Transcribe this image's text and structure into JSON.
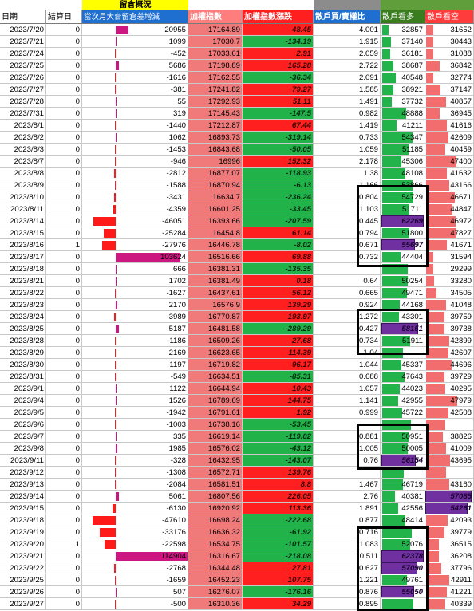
{
  "group_headers": {
    "oi_overview": "留倉概況"
  },
  "headers": {
    "date": "日期",
    "settle_day": "結算日",
    "oi_change": "當次月大台留倉差增減",
    "index": "加權指數",
    "index_change": "加權指數漲跌",
    "retail_ls_ratio": "散戶買/賣權比",
    "retail_long": "散戶看多",
    "retail_short": "散戶看空"
  },
  "colors": {
    "up": "#ff1f1f",
    "down": "#21b24a",
    "highlight": "#7030a0",
    "header_yellow": "#ffff00",
    "header_blue": "#1f6fd1"
  },
  "rows": [
    {
      "date": "2023/7/20",
      "settle": "0",
      "oi": "20955",
      "oiv": 20955,
      "idx": "17164.89",
      "chg": "48.45",
      "chgv": 48.45,
      "ratio": "4.001",
      "long": "32857",
      "longv": 32857,
      "short": "31652",
      "shortv": 31652
    },
    {
      "date": "2023/7/21",
      "settle": "0",
      "oi": "1099",
      "oiv": 1099,
      "idx": "17030.7",
      "chg": "-134.19",
      "chgv": -134.19,
      "ratio": "1.915",
      "long": "37140",
      "longv": 37140,
      "short": "30443",
      "shortv": 30443
    },
    {
      "date": "2023/7/24",
      "settle": "0",
      "oi": "-452",
      "oiv": -452,
      "idx": "17033.61",
      "chg": "2.91",
      "chgv": 2.91,
      "ratio": "2.059",
      "long": "36181",
      "longv": 36181,
      "short": "31088",
      "shortv": 31088
    },
    {
      "date": "2023/7/25",
      "settle": "0",
      "oi": "5686",
      "oiv": 5686,
      "idx": "17198.89",
      "chg": "165.28",
      "chgv": 165.28,
      "ratio": "2.722",
      "long": "38687",
      "longv": 38687,
      "short": "36842",
      "shortv": 36842
    },
    {
      "date": "2023/7/26",
      "settle": "0",
      "oi": "-1616",
      "oiv": -1616,
      "idx": "17162.55",
      "chg": "-36.34",
      "chgv": -36.34,
      "ratio": "2.091",
      "long": "40548",
      "longv": 40548,
      "short": "32774",
      "shortv": 32774
    },
    {
      "date": "2023/7/27",
      "settle": "0",
      "oi": "-381",
      "oiv": -381,
      "idx": "17241.82",
      "chg": "79.27",
      "chgv": 79.27,
      "ratio": "1.585",
      "long": "38921",
      "longv": 38921,
      "short": "37147",
      "shortv": 37147
    },
    {
      "date": "2023/7/28",
      "settle": "0",
      "oi": "55",
      "oiv": 55,
      "idx": "17292.93",
      "chg": "51.11",
      "chgv": 51.11,
      "ratio": "1.491",
      "long": "37732",
      "longv": 37732,
      "short": "40857",
      "shortv": 40857
    },
    {
      "date": "2023/7/31",
      "settle": "0",
      "oi": "319",
      "oiv": 319,
      "idx": "17145.43",
      "chg": "-147.5",
      "chgv": -147.5,
      "ratio": "0.982",
      "long": "48888",
      "longv": 48888,
      "short": "36945",
      "shortv": 36945
    },
    {
      "date": "2023/8/1",
      "settle": "0",
      "oi": "-1440",
      "oiv": -1440,
      "idx": "17212.87",
      "chg": "67.44",
      "chgv": 67.44,
      "ratio": "1.419",
      "long": "41211",
      "longv": 41211,
      "short": "41616",
      "shortv": 41616
    },
    {
      "date": "2023/8/2",
      "settle": "0",
      "oi": "1062",
      "oiv": 1062,
      "idx": "16893.73",
      "chg": "-319.14",
      "chgv": -319.14,
      "ratio": "0.733",
      "long": "54347",
      "longv": 54347,
      "short": "42609",
      "shortv": 42609
    },
    {
      "date": "2023/8/3",
      "settle": "0",
      "oi": "-1453",
      "oiv": -1453,
      "idx": "16843.68",
      "chg": "-50.05",
      "chgv": -50.05,
      "ratio": "1.059",
      "long": "51185",
      "longv": 51185,
      "short": "40459",
      "shortv": 40459
    },
    {
      "date": "2023/8/7",
      "settle": "0",
      "oi": "-946",
      "oiv": -946,
      "idx": "16996",
      "chg": "152.32",
      "chgv": 152.32,
      "ratio": "2.178",
      "long": "45306",
      "longv": 45306,
      "short": "47400",
      "shortv": 47400
    },
    {
      "date": "2023/8/8",
      "settle": "0",
      "oi": "-2812",
      "oiv": -2812,
      "idx": "16877.07",
      "chg": "-118.93",
      "chgv": -118.93,
      "ratio": "1.38",
      "long": "48108",
      "longv": 48108,
      "short": "41632",
      "shortv": 41632
    },
    {
      "date": "2023/8/9",
      "settle": "0",
      "oi": "-1588",
      "oiv": -1588,
      "idx": "16870.94",
      "chg": "-6.13",
      "chgv": -6.13,
      "ratio": "1.166",
      "long": "53866",
      "longv": 53866,
      "short": "43166",
      "shortv": 43166
    },
    {
      "date": "2023/8/10",
      "settle": "0",
      "oi": "-3431",
      "oiv": -3431,
      "idx": "16634.7",
      "chg": "-236.24",
      "chgv": -236.24,
      "ratio": "0.804",
      "long": "54729",
      "longv": 54729,
      "short": "46671",
      "shortv": 46671
    },
    {
      "date": "2023/8/11",
      "settle": "0",
      "oi": "-4359",
      "oiv": -4359,
      "idx": "16601.25",
      "chg": "-33.45",
      "chgv": -33.45,
      "ratio": "1.103",
      "long": "51711",
      "longv": 51711,
      "short": "44847",
      "shortv": 44847
    },
    {
      "date": "2023/8/14",
      "settle": "0",
      "oi": "-46051",
      "oiv": -46051,
      "idx": "16393.66",
      "chg": "-207.59",
      "chgv": -207.59,
      "ratio": "0.445",
      "long": "62269",
      "longv": 62269,
      "short": "46972",
      "shortv": 46972,
      "hl_long": true
    },
    {
      "date": "2023/8/15",
      "settle": "0",
      "oi": "-25284",
      "oiv": -25284,
      "idx": "16454.8",
      "chg": "61.14",
      "chgv": 61.14,
      "ratio": "0.794",
      "long": "51800",
      "longv": 51800,
      "short": "47827",
      "shortv": 47827
    },
    {
      "date": "2023/8/16",
      "settle": "1",
      "oi": "-27976",
      "oiv": -27976,
      "idx": "16446.78",
      "chg": "-8.02",
      "chgv": -8.02,
      "ratio": "0.671",
      "long": "55697",
      "longv": 55697,
      "short": "41671",
      "shortv": 41671,
      "hl_long": true
    },
    {
      "date": "2023/8/17",
      "settle": "0",
      "oi": "103624",
      "oiv": 103624,
      "idx": "16516.66",
      "chg": "69.88",
      "chgv": 69.88,
      "ratio": "0.732",
      "long": "44404",
      "longv": 44404,
      "short": "31594",
      "shortv": 31594
    },
    {
      "date": "2023/8/18",
      "settle": "0",
      "oi": "666",
      "oiv": 666,
      "idx": "16381.31",
      "chg": "-135.35",
      "chgv": -135.35,
      "ratio": "",
      "long": "",
      "longv": 50200,
      "short": "29299",
      "shortv": 29299
    },
    {
      "date": "2023/8/21",
      "settle": "0",
      "oi": "1702",
      "oiv": 1702,
      "idx": "16381.49",
      "chg": "0.18",
      "chgv": 0.18,
      "ratio": "0.64",
      "long": "50254",
      "longv": 50254,
      "short": "33280",
      "shortv": 33280
    },
    {
      "date": "2023/8/22",
      "settle": "0",
      "oi": "-1627",
      "oiv": -1627,
      "idx": "16437.61",
      "chg": "56.12",
      "chgv": 56.12,
      "ratio": "0.665",
      "long": "49471",
      "longv": 49471,
      "short": "34505",
      "shortv": 34505
    },
    {
      "date": "2023/8/23",
      "settle": "0",
      "oi": "2170",
      "oiv": 2170,
      "idx": "16576.9",
      "chg": "139.29",
      "chgv": 139.29,
      "ratio": "0.924",
      "long": "44168",
      "longv": 44168,
      "short": "41048",
      "shortv": 41048
    },
    {
      "date": "2023/8/24",
      "settle": "0",
      "oi": "-3989",
      "oiv": -3989,
      "idx": "16770.87",
      "chg": "193.97",
      "chgv": 193.97,
      "ratio": "1.272",
      "long": "43301",
      "longv": 43301,
      "short": "39759",
      "shortv": 39759
    },
    {
      "date": "2023/8/25",
      "settle": "0",
      "oi": "5187",
      "oiv": 5187,
      "idx": "16481.58",
      "chg": "-289.29",
      "chgv": -289.29,
      "ratio": "0.427",
      "long": "58151",
      "longv": 58151,
      "short": "39738",
      "shortv": 39738,
      "hl_long": true
    },
    {
      "date": "2023/8/28",
      "settle": "0",
      "oi": "-1186",
      "oiv": -1186,
      "idx": "16509.26",
      "chg": "27.68",
      "chgv": 27.68,
      "ratio": "0.734",
      "long": "51911",
      "longv": 51911,
      "short": "42899",
      "shortv": 42899
    },
    {
      "date": "2023/8/29",
      "settle": "0",
      "oi": "-2169",
      "oiv": -2169,
      "idx": "16623.65",
      "chg": "114.39",
      "chgv": 114.39,
      "ratio": "1.04",
      "long": "",
      "longv": 46600,
      "short": "42607",
      "shortv": 42607
    },
    {
      "date": "2023/8/30",
      "settle": "0",
      "oi": "-1197",
      "oiv": -1197,
      "idx": "16719.82",
      "chg": "96.17",
      "chgv": 96.17,
      "ratio": "1.044",
      "long": "45337",
      "longv": 45337,
      "short": "44696",
      "shortv": 44696
    },
    {
      "date": "2023/8/31",
      "settle": "0",
      "oi": "-549",
      "oiv": -549,
      "idx": "16634.51",
      "chg": "-85.31",
      "chgv": -85.31,
      "ratio": "0.688",
      "long": "47643",
      "longv": 47643,
      "short": "39729",
      "shortv": 39729
    },
    {
      "date": "2023/9/1",
      "settle": "0",
      "oi": "1122",
      "oiv": 1122,
      "idx": "16644.94",
      "chg": "10.43",
      "chgv": 10.43,
      "ratio": "1.057",
      "long": "44023",
      "longv": 44023,
      "short": "40295",
      "shortv": 40295
    },
    {
      "date": "2023/9/4",
      "settle": "0",
      "oi": "1526",
      "oiv": 1526,
      "idx": "16789.69",
      "chg": "144.75",
      "chgv": 144.75,
      "ratio": "1.141",
      "long": "42955",
      "longv": 42955,
      "short": "47979",
      "shortv": 47979
    },
    {
      "date": "2023/9/5",
      "settle": "0",
      "oi": "-1942",
      "oiv": -1942,
      "idx": "16791.61",
      "chg": "1.92",
      "chgv": 1.92,
      "ratio": "0.999",
      "long": "45722",
      "longv": 45722,
      "short": "42508",
      "shortv": 42508
    },
    {
      "date": "2023/9/6",
      "settle": "0",
      "oi": "-1003",
      "oiv": -1003,
      "idx": "16738.16",
      "chg": "-53.45",
      "chgv": -53.45,
      "ratio": "",
      "long": "",
      "longv": 52800,
      "short": "",
      "shortv": 40500
    },
    {
      "date": "2023/9/7",
      "settle": "0",
      "oi": "335",
      "oiv": 335,
      "idx": "16619.14",
      "chg": "-119.02",
      "chgv": -119.02,
      "ratio": "0.881",
      "long": "50951",
      "longv": 50951,
      "short": "38826",
      "shortv": 38826
    },
    {
      "date": "2023/9/8",
      "settle": "0",
      "oi": "1985",
      "oiv": 1985,
      "idx": "16576.02",
      "chg": "-43.12",
      "chgv": -43.12,
      "ratio": "1.005",
      "long": "50005",
      "longv": 50005,
      "short": "41009",
      "shortv": 41009
    },
    {
      "date": "2023/9/11",
      "settle": "0",
      "oi": "-328",
      "oiv": -328,
      "idx": "16432.95",
      "chg": "-143.07",
      "chgv": -143.07,
      "ratio": "0.76",
      "long": "56154",
      "longv": 56154,
      "short": "43695",
      "shortv": 43695,
      "hl_long": true
    },
    {
      "date": "2023/9/12",
      "settle": "0",
      "oi": "-1308",
      "oiv": -1308,
      "idx": "16572.71",
      "chg": "139.76",
      "chgv": 139.76,
      "ratio": "",
      "long": "",
      "longv": 47000,
      "short": "",
      "shortv": 41000
    },
    {
      "date": "2023/9/13",
      "settle": "0",
      "oi": "-2084",
      "oiv": -2084,
      "idx": "16581.51",
      "chg": "8.8",
      "chgv": 8.8,
      "ratio": "1.467",
      "long": "46719",
      "longv": 46719,
      "short": "43160",
      "shortv": 43160
    },
    {
      "date": "2023/9/14",
      "settle": "0",
      "oi": "5061",
      "oiv": 5061,
      "idx": "16807.56",
      "chg": "226.05",
      "chgv": 226.05,
      "ratio": "2.76",
      "long": "40381",
      "longv": 40381,
      "short": "57085",
      "shortv": 57085,
      "hl_short": true
    },
    {
      "date": "2023/9/15",
      "settle": "0",
      "oi": "-6130",
      "oiv": -6130,
      "idx": "16920.92",
      "chg": "113.36",
      "chgv": 113.36,
      "ratio": "1.891",
      "long": "42556",
      "longv": 42556,
      "short": "54261",
      "shortv": 54261,
      "hl_short": true
    },
    {
      "date": "2023/9/18",
      "settle": "0",
      "oi": "-47610",
      "oiv": -47610,
      "idx": "16698.24",
      "chg": "-222.68",
      "chgv": -222.68,
      "ratio": "0.877",
      "long": "48414",
      "longv": 48414,
      "short": "42093",
      "shortv": 42093
    },
    {
      "date": "2023/9/19",
      "settle": "0",
      "oi": "-33176",
      "oiv": -33176,
      "idx": "16636.32",
      "chg": "-61.92",
      "chgv": -61.92,
      "ratio": "0.716",
      "long": "",
      "longv": 53200,
      "short": "39779",
      "shortv": 39779
    },
    {
      "date": "2023/9/20",
      "settle": "1",
      "oi": "-22598",
      "oiv": -22598,
      "idx": "16534.75",
      "chg": "-101.57",
      "chgv": -101.57,
      "ratio": "1.083",
      "long": "52076",
      "longv": 52076,
      "short": "36515",
      "shortv": 36515
    },
    {
      "date": "2023/9/21",
      "settle": "0",
      "oi": "114904",
      "oiv": 114904,
      "idx": "16316.67",
      "chg": "-218.08",
      "chgv": -218.08,
      "ratio": "0.511",
      "long": "62378",
      "longv": 62378,
      "short": "36208",
      "shortv": 36208,
      "hl_long": true
    },
    {
      "date": "2023/9/22",
      "settle": "0",
      "oi": "-2768",
      "oiv": -2768,
      "idx": "16344.48",
      "chg": "27.81",
      "chgv": 27.81,
      "ratio": "0.627",
      "long": "57090",
      "longv": 57090,
      "short": "37796",
      "shortv": 37796,
      "hl_long": true
    },
    {
      "date": "2023/9/25",
      "settle": "0",
      "oi": "-1659",
      "oiv": -1659,
      "idx": "16452.23",
      "chg": "107.75",
      "chgv": 107.75,
      "ratio": "1.221",
      "long": "49761",
      "longv": 49761,
      "short": "42911",
      "shortv": 42911
    },
    {
      "date": "2023/9/26",
      "settle": "0",
      "oi": "507",
      "oiv": 507,
      "idx": "16276.07",
      "chg": "-176.16",
      "chgv": -176.16,
      "ratio": "0.876",
      "long": "55050",
      "longv": 55050,
      "short": "41221",
      "shortv": 41221,
      "hl_long": true
    },
    {
      "date": "2023/9/27",
      "settle": "0",
      "oi": "-500",
      "oiv": -500,
      "idx": "16310.36",
      "chg": "34.29",
      "chgv": 34.29,
      "ratio": "0.895",
      "long": "",
      "longv": 54900,
      "short": "40339",
      "shortv": 40339
    }
  ]
}
